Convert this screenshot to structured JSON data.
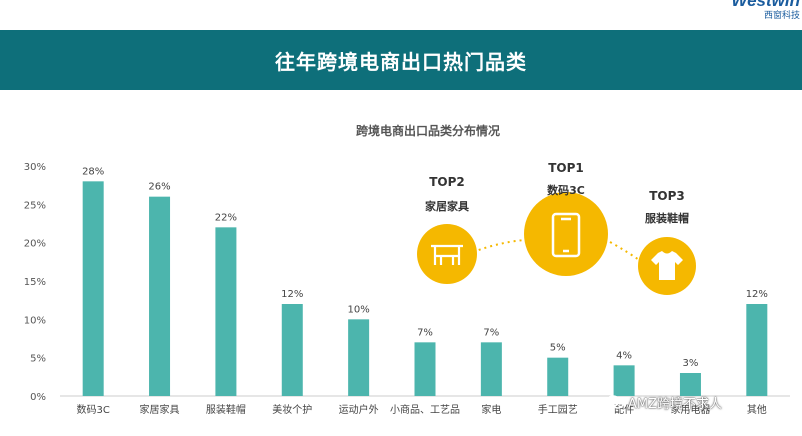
{
  "header": {
    "title": "往年跨境电商出口热门品类",
    "brand_logo": "Westwin",
    "brand_sub": "西窗科技"
  },
  "chart_data": {
    "type": "bar",
    "title": "跨境电商出口品类分布情况",
    "categories": [
      "数码3C",
      "家居家具",
      "服装鞋帽",
      "美妆个护",
      "运动户外",
      "小商品、工艺品",
      "家电",
      "手工园艺",
      "配件",
      "家用电器",
      "其他"
    ],
    "values": [
      28,
      26,
      22,
      12,
      10,
      7,
      7,
      5,
      4,
      3,
      12
    ],
    "value_labels": [
      "28%",
      "26%",
      "22%",
      "12%",
      "10%",
      "7%",
      "7%",
      "5%",
      "4%",
      "3%",
      "12%"
    ],
    "y_ticks": [
      "0%",
      "5%",
      "10%",
      "15%",
      "20%",
      "25%",
      "30%"
    ],
    "ylim": [
      0,
      30
    ],
    "xlabel": "",
    "ylabel": "",
    "bar_color": "#4cb5ad",
    "grid": false
  },
  "tops": [
    {
      "rank": "TOP2",
      "label": "家居家具",
      "icon": "furniture-icon"
    },
    {
      "rank": "TOP1",
      "label": "数码3C",
      "icon": "phone-icon"
    },
    {
      "rank": "TOP3",
      "label": "服装鞋帽",
      "icon": "tshirt-icon"
    }
  ],
  "colors": {
    "banner": "#0e6f7a",
    "circle": "#f5b800",
    "bar": "#4cb5ad"
  },
  "watermark": {
    "text": "AMZ跨境不求人",
    "icon": "wechat-icon"
  }
}
